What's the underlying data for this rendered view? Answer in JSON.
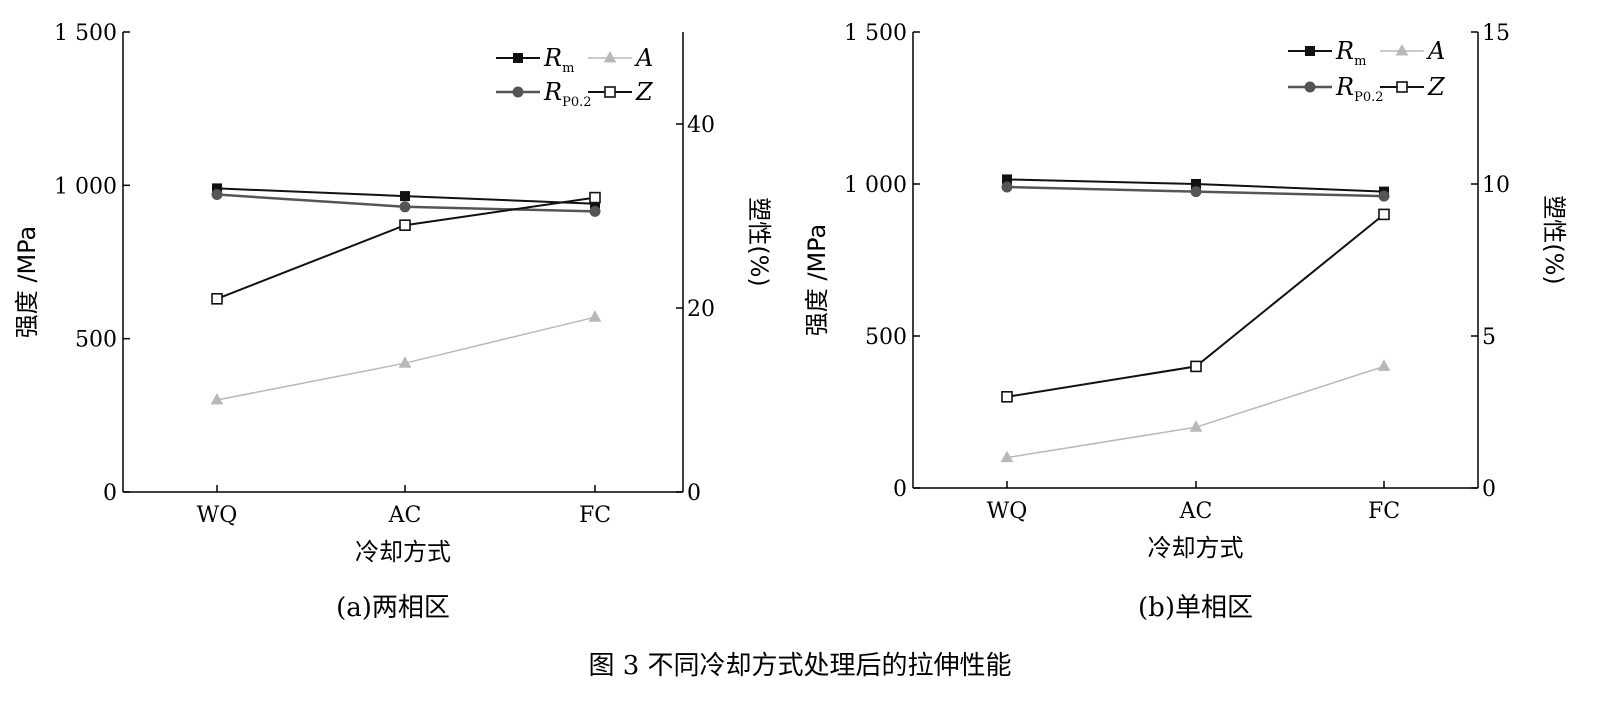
{
  "figure_caption": "图 3  不同冷却方式处理后的拉伸性能",
  "chart_data": [
    {
      "type": "line",
      "subcaption": "(a)两相区",
      "categories": [
        "WQ",
        "AC",
        "FC"
      ],
      "xlabel": "冷却方式",
      "ylabel": "强度 /MPa",
      "y2label": "塑性(%)",
      "ylim": [
        0,
        1500
      ],
      "yticks": [
        {
          "value": 0,
          "label": "0"
        },
        {
          "value": 500,
          "label": "500"
        },
        {
          "value": 1000,
          "label": "1 000"
        },
        {
          "value": 1500,
          "label": "1 500"
        }
      ],
      "y2lim": [
        0,
        50
      ],
      "y2ticks": [
        {
          "value": 0,
          "label": "0"
        },
        {
          "value": 20,
          "label": "20"
        },
        {
          "value": 40,
          "label": "40"
        }
      ],
      "grid": false,
      "legend_position": "top-right",
      "series": [
        {
          "name": "R",
          "sub": "m",
          "axis": "left",
          "marker": "square-filled",
          "color": "#111111",
          "width": 2,
          "values": [
            990,
            965,
            940
          ]
        },
        {
          "name": "A",
          "sub": "",
          "axis": "right",
          "marker": "triangle",
          "color": "#b8b8b8",
          "width": 1.5,
          "values": [
            10,
            14,
            19
          ]
        },
        {
          "name": "R",
          "sub": "P0.2",
          "axis": "left",
          "marker": "circle",
          "color": "#555555",
          "width": 2.5,
          "values": [
            970,
            930,
            915
          ]
        },
        {
          "name": "Z",
          "sub": "",
          "axis": "right",
          "marker": "square-open",
          "color": "#111111",
          "width": 2,
          "values": [
            21,
            29,
            32
          ]
        }
      ]
    },
    {
      "type": "line",
      "subcaption": "(b)单相区",
      "categories": [
        "WQ",
        "AC",
        "FC"
      ],
      "xlabel": "冷却方式",
      "ylabel": "强度 /MPa",
      "y2label": "塑性(%)",
      "ylim": [
        0,
        1500
      ],
      "yticks": [
        {
          "value": 0,
          "label": "0"
        },
        {
          "value": 500,
          "label": "500"
        },
        {
          "value": 1000,
          "label": "1 000"
        },
        {
          "value": 1500,
          "label": "1 500"
        }
      ],
      "y2lim": [
        0,
        15
      ],
      "y2ticks": [
        {
          "value": 0,
          "label": "0"
        },
        {
          "value": 5,
          "label": "5"
        },
        {
          "value": 10,
          "label": "10"
        },
        {
          "value": 15,
          "label": "15"
        }
      ],
      "grid": false,
      "legend_position": "top-right",
      "series": [
        {
          "name": "R",
          "sub": "m",
          "axis": "left",
          "marker": "square-filled",
          "color": "#111111",
          "width": 2,
          "values": [
            1015,
            1000,
            975
          ]
        },
        {
          "name": "A",
          "sub": "",
          "axis": "right",
          "marker": "triangle",
          "color": "#b8b8b8",
          "width": 1.5,
          "values": [
            1,
            2,
            4
          ]
        },
        {
          "name": "R",
          "sub": "P0.2",
          "axis": "left",
          "marker": "circle",
          "color": "#555555",
          "width": 2.5,
          "values": [
            990,
            975,
            960
          ]
        },
        {
          "name": "Z",
          "sub": "",
          "axis": "right",
          "marker": "square-open",
          "color": "#111111",
          "width": 2,
          "values": [
            3,
            4,
            9
          ]
        }
      ]
    }
  ]
}
